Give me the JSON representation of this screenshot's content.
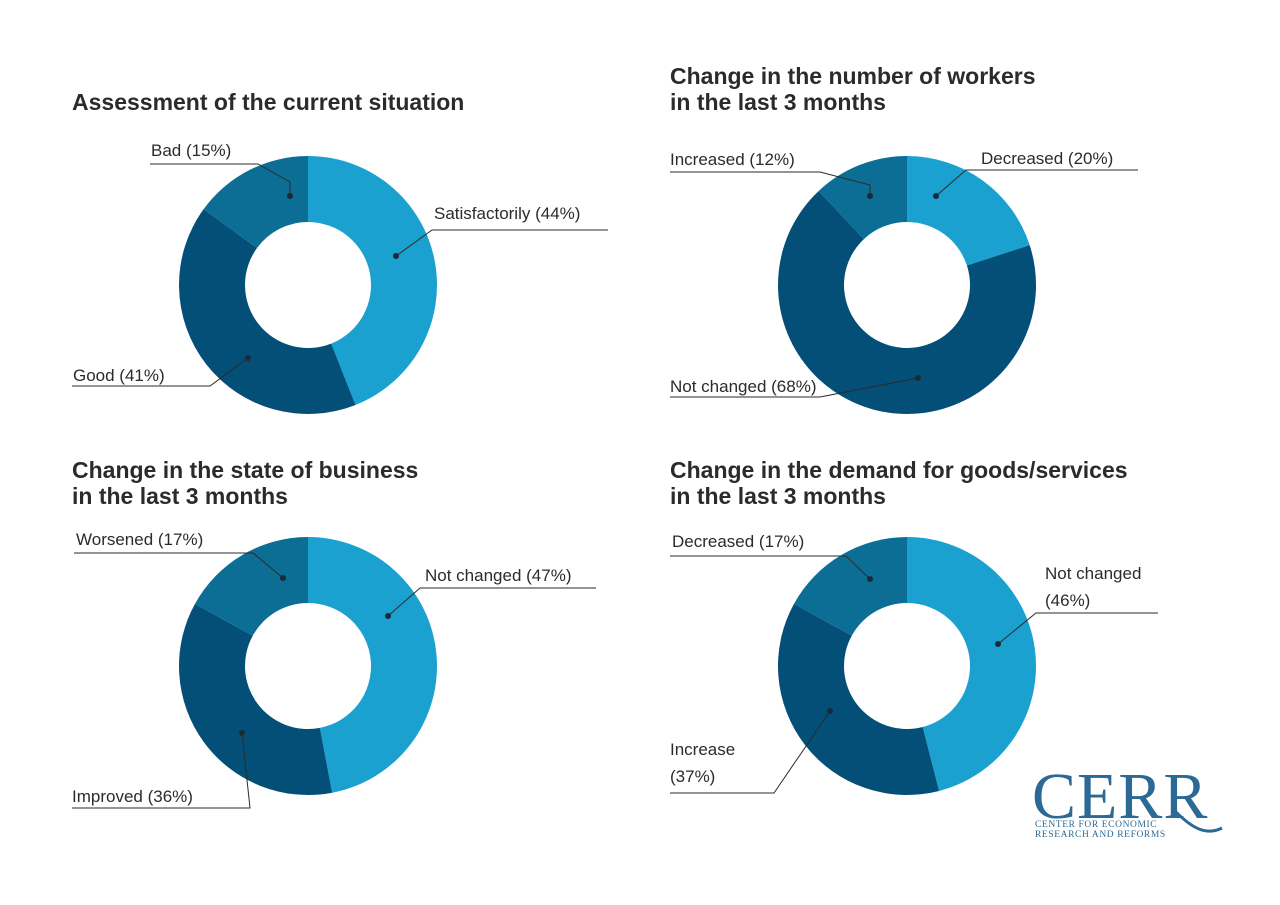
{
  "chart_data": [
    {
      "type": "pie",
      "title_lines": [
        "Assessment of the current situation"
      ],
      "categories": [
        "Satisfactorily",
        "Good",
        "Bad"
      ],
      "values": [
        44,
        41,
        15
      ],
      "labels": [
        "Satisfactorily (44%)",
        "Good (41%)",
        "Bad (15%)"
      ],
      "donut": true
    },
    {
      "type": "pie",
      "title_lines": [
        "Change in the number of workers",
        "in the last 3 months"
      ],
      "categories": [
        "Decreased",
        "Not changed",
        "Increased"
      ],
      "values": [
        20,
        68,
        12
      ],
      "labels": [
        "Decreased  (20%)",
        "Not changed (68%)",
        "Increased (12%)"
      ],
      "donut": true
    },
    {
      "type": "pie",
      "title_lines": [
        "Change in the state of business",
        "in the last 3 months"
      ],
      "categories": [
        "Not changed",
        "Improved",
        "Worsened"
      ],
      "values": [
        47,
        36,
        17
      ],
      "labels": [
        "Not changed (47%)",
        "Improved (36%)",
        "Worsened (17%)"
      ],
      "donut": true
    },
    {
      "type": "pie",
      "title_lines": [
        "Change in the demand for goods/services",
        "in the last 3 months"
      ],
      "categories": [
        "Not changed",
        "Increase",
        "Decreased"
      ],
      "values": [
        46,
        37,
        17
      ],
      "labels": [
        "Not changed|(46%)",
        "Increase|(37%)",
        "Decreased (17%)"
      ],
      "donut": true
    }
  ],
  "colors": {
    "light": "#1aa1cf",
    "dark": "#034f78",
    "mid": "#0c6e95",
    "text": "#2b2b2b"
  },
  "logo": {
    "name": "CERR",
    "line1": "CENTER FOR ECONOMIC",
    "line2": "RESEARCH AND REFORMS"
  }
}
